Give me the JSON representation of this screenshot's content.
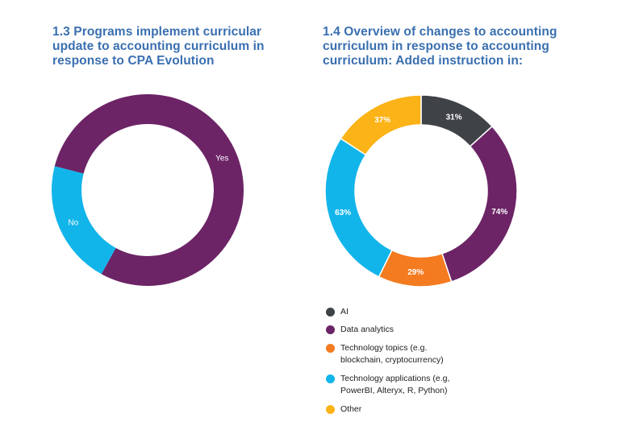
{
  "chart_data": [
    {
      "type": "pie",
      "variant": "donut",
      "title": "1.3 Programs implement curricular update to accounting curriculum in response to CPA Evolution",
      "categories": [
        "Yes",
        "No"
      ],
      "values": [
        79,
        21
      ],
      "labels": [
        "Yes",
        "No"
      ],
      "colors": [
        "#6c2466",
        "#12b5ea"
      ]
    },
    {
      "type": "pie",
      "variant": "donut",
      "title": "1.4 Overview of changes to accounting curriculum in response to accounting curriculum: Added instruction in:",
      "categories": [
        "AI",
        "Data analytics",
        "Technology topics (e.g. blockchain, cryptocurrency)",
        "Technology applications (e.g, PowerBI, Alteryx, R, Python)",
        "Other"
      ],
      "values": [
        31,
        74,
        29,
        63,
        37
      ],
      "labels": [
        "31%",
        "74%",
        "29%",
        "63%",
        "37%"
      ],
      "colors": [
        "#3f4247",
        "#6c2466",
        "#f47b20",
        "#12b5ea",
        "#fbb318"
      ],
      "legend": [
        {
          "lines": [
            "AI"
          ],
          "color": "#3f4247"
        },
        {
          "lines": [
            "Data analytics"
          ],
          "color": "#6c2466"
        },
        {
          "lines": [
            "Technology topics (e.g.",
            "blockchain, cryptocurrency)"
          ],
          "color": "#f47b20"
        },
        {
          "lines": [
            "Technology applications (e.g,",
            "PowerBI, Alteryx, R, Python)"
          ],
          "color": "#12b5ea"
        },
        {
          "lines": [
            "Other"
          ],
          "color": "#fbb318"
        }
      ]
    }
  ]
}
